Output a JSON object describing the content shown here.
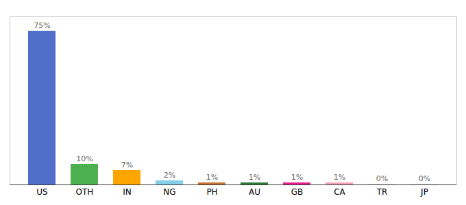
{
  "chart_data": {
    "type": "bar",
    "categories": [
      "US",
      "OTH",
      "IN",
      "NG",
      "PH",
      "AU",
      "GB",
      "CA",
      "TR",
      "JP"
    ],
    "values": [
      75,
      10,
      7,
      2,
      1,
      1,
      1,
      1,
      0.3,
      0.3
    ],
    "value_labels": [
      "75%",
      "10%",
      "7%",
      "2%",
      "1%",
      "1%",
      "1%",
      "1%",
      "0%",
      "0%"
    ],
    "colors": [
      "#4f6fca",
      "#4caf50",
      "#ffa500",
      "#87ceeb",
      "#c87030",
      "#2d7a3a",
      "#e91e8c",
      "#f4a0b5",
      "#dddddd",
      "#dddddd"
    ],
    "ylim": [
      0,
      82
    ],
    "data_labels": true,
    "tick_labels": "x",
    "grid": false
  }
}
